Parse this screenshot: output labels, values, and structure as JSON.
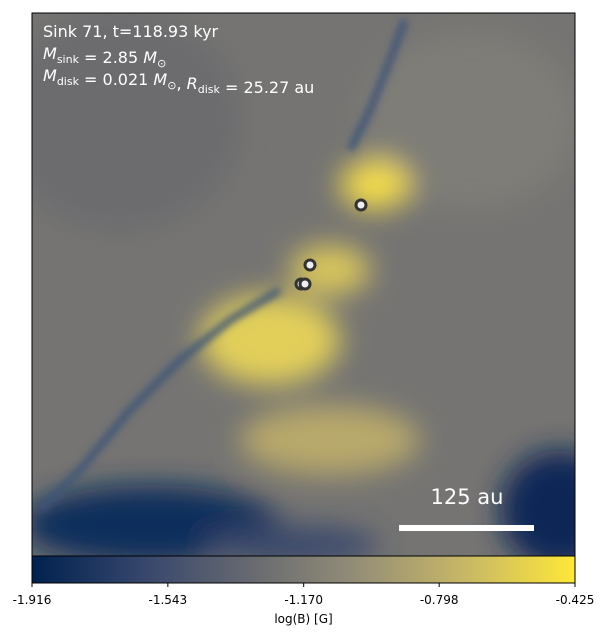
{
  "chart_data": {
    "type": "heatmap",
    "annotations": [
      [
        {
          "text": "Sink 71, t=118.93 kyr"
        }
      ],
      [
        {
          "text": "M",
          "italic": true
        },
        {
          "sub": "sink"
        },
        {
          "text": " = 2.85 "
        },
        {
          "text": "M",
          "italic": true
        },
        {
          "sub": "⊙"
        }
      ],
      [
        {
          "text": "M",
          "italic": true
        },
        {
          "sub": "disk"
        },
        {
          "text": " = 0.021 "
        },
        {
          "text": "M",
          "italic": true
        },
        {
          "sub": "⊙"
        },
        {
          "text": ", "
        },
        {
          "text": "R",
          "italic": true
        },
        {
          "sub": "disk"
        },
        {
          "text": " = 25.27 au"
        }
      ]
    ],
    "scale_bar_label": "125 au",
    "colorbar": {
      "label": "log(B) [G]",
      "clim": [
        -1.916,
        -0.425
      ],
      "ticks": [
        -1.916,
        -1.543,
        {
          "value": -1.17,
          "label": "-1.170"
        },
        -0.798,
        -0.425
      ],
      "colors": [
        "#00224e",
        "#35456c",
        "#666970",
        "#948e77",
        "#c8b866",
        "#fee838"
      ]
    }
  }
}
